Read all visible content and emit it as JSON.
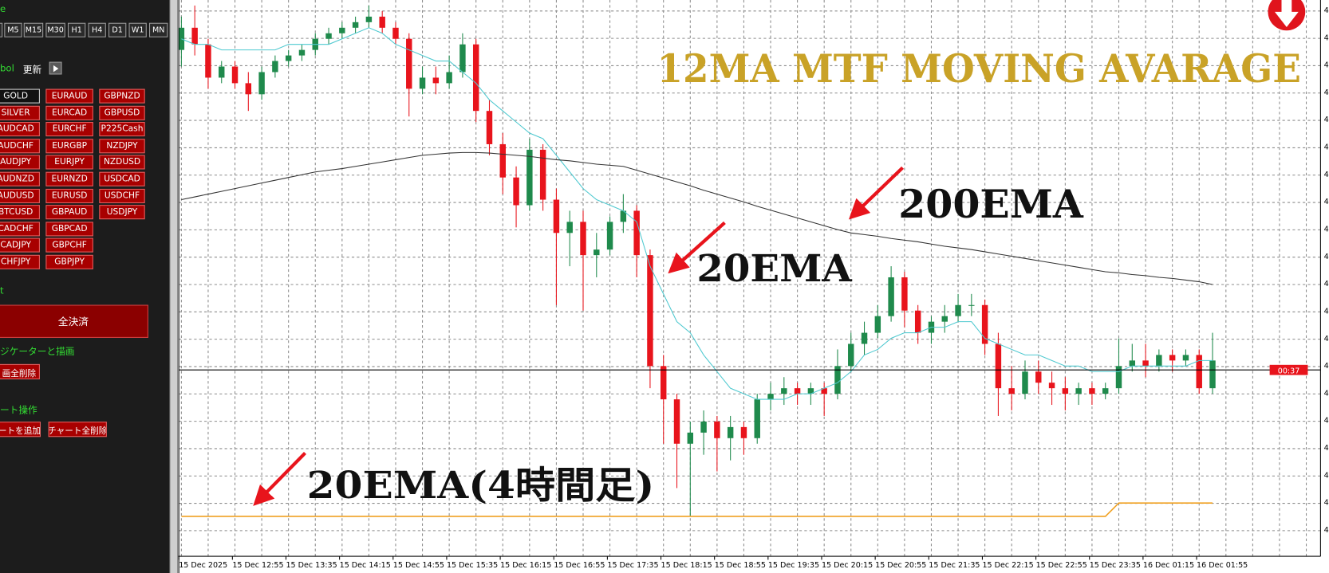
{
  "panel": {
    "timeframe_label": "e",
    "timeframes": [
      "M5",
      "M15",
      "M30",
      "H1",
      "H4",
      "D1",
      "W1",
      "MN"
    ],
    "symbol_label": "bol",
    "refresh": "更新",
    "symbol_columns": [
      [
        "GOLD",
        "SILVER",
        "AUDCAD",
        "AUDCHF",
        "AUDJPY",
        "AUDNZD",
        "AUDUSD",
        "BTCUSD",
        "CADCHF",
        "CADJPY",
        "CHFJPY"
      ],
      [
        "EURAUD",
        "EURCAD",
        "EURCHF",
        "EURGBP",
        "EURJPY",
        "EURNZD",
        "EURUSD",
        "GBPAUD",
        "GBPCAD",
        "GBPCHF",
        "GBPJPY"
      ],
      [
        "GBPNZD",
        "GBPUSD",
        "P225Cash",
        "NZDJPY",
        "NZDUSD",
        "USDCAD",
        "USDCHF",
        "USDJPY"
      ]
    ],
    "close_label": "t",
    "close_all": "全決済",
    "indicator_label": "ジケーターと描画",
    "delete_objects": "画全削除",
    "chart_label": "ート操作",
    "add_chart": "ートを追加",
    "delete_charts": "チャート全削除"
  },
  "chart_data": {
    "type": "candlestick",
    "title": "12MA MTF MOVING AVARAGE",
    "annotations": [
      "200EMA",
      "20EMA",
      "20EMA(4時間足)"
    ],
    "categories": [
      "15 Dec 2025",
      null,
      null,
      null,
      "15 Dec 12:55",
      null,
      null,
      null,
      "15 Dec 13:35",
      null,
      null,
      null,
      "15 Dec 14:15",
      null,
      null,
      null,
      "15 Dec 14:55",
      null,
      null,
      null,
      "15 Dec 15:35",
      null,
      null,
      null,
      "15 Dec 16:15",
      null,
      null,
      null,
      "15 Dec 16:55",
      null,
      null,
      null,
      "15 Dec 17:35",
      null,
      null,
      null,
      "15 Dec 18:15",
      null,
      null,
      null,
      "15 Dec 18:55",
      null,
      null,
      null,
      "15 Dec 19:35",
      null,
      null,
      null,
      "15 Dec 20:15",
      null,
      null,
      null,
      "15 Dec 20:55",
      null,
      null,
      null,
      "15 Dec 21:35",
      null,
      null,
      null,
      "15 Dec 22:15",
      null,
      null,
      null,
      "15 Dec 22:55",
      null,
      null,
      null,
      "15 Dec 23:35",
      null,
      null,
      null,
      "16 Dec 01:15",
      null,
      null,
      null,
      "16 Dec 01:55",
      null
    ],
    "candles": [
      [
        91,
        97,
        88,
        95
      ],
      [
        95,
        99,
        90,
        92
      ],
      [
        92,
        93,
        84,
        86
      ],
      [
        86,
        89,
        85,
        88
      ],
      [
        88,
        89,
        84,
        85
      ],
      [
        85,
        87,
        80,
        83
      ],
      [
        83,
        88,
        82,
        87
      ],
      [
        87,
        90,
        86,
        89
      ],
      [
        89,
        91,
        88,
        90
      ],
      [
        90,
        92,
        89,
        91
      ],
      [
        91,
        94,
        90,
        93
      ],
      [
        93,
        95,
        92,
        94
      ],
      [
        94,
        96,
        93,
        95
      ],
      [
        95,
        97,
        94,
        96
      ],
      [
        96,
        99,
        95,
        97
      ],
      [
        97,
        98,
        94,
        95
      ],
      [
        95,
        96,
        92,
        93
      ],
      [
        93,
        94,
        79,
        84
      ],
      [
        84,
        88,
        83,
        86
      ],
      [
        86,
        88,
        83,
        85
      ],
      [
        85,
        90,
        84,
        87
      ],
      [
        87,
        94,
        86,
        92
      ],
      [
        92,
        93,
        78,
        80
      ],
      [
        80,
        82,
        72,
        74
      ],
      [
        74,
        76,
        65,
        68
      ],
      [
        68,
        70,
        59,
        63
      ],
      [
        63,
        75,
        62,
        73
      ],
      [
        73,
        74,
        62,
        64
      ],
      [
        64,
        66,
        45,
        58
      ],
      [
        58,
        62,
        52,
        60
      ],
      [
        60,
        62,
        44,
        54
      ],
      [
        54,
        58,
        50,
        55
      ],
      [
        55,
        61,
        54,
        60
      ],
      [
        60,
        65,
        58,
        62
      ],
      [
        62,
        63,
        50,
        54
      ],
      [
        54,
        55,
        30,
        34
      ],
      [
        34,
        36,
        20,
        28
      ],
      [
        28,
        29,
        12,
        20
      ],
      [
        20,
        24,
        7,
        22
      ],
      [
        22,
        26,
        18,
        24
      ],
      [
        24,
        25,
        15,
        21
      ],
      [
        21,
        25,
        17,
        23
      ],
      [
        23,
        24,
        18,
        21
      ],
      [
        21,
        29,
        20,
        28
      ],
      [
        28,
        31,
        26,
        29
      ],
      [
        29,
        32,
        27,
        30
      ],
      [
        30,
        31,
        27,
        29
      ],
      [
        29,
        31,
        27,
        30
      ],
      [
        30,
        31,
        25,
        29
      ],
      [
        29,
        37,
        28,
        34
      ],
      [
        34,
        40,
        33,
        38
      ],
      [
        38,
        42,
        36,
        40
      ],
      [
        40,
        45,
        39,
        43
      ],
      [
        43,
        52,
        42,
        50
      ],
      [
        50,
        51,
        41,
        44
      ],
      [
        44,
        45,
        38,
        40
      ],
      [
        40,
        43,
        38,
        42
      ],
      [
        42,
        45,
        40,
        43
      ],
      [
        43,
        47,
        42,
        45
      ],
      [
        45,
        47,
        43,
        45
      ],
      [
        45,
        46,
        36,
        38
      ],
      [
        38,
        40,
        25,
        30
      ],
      [
        30,
        34,
        26,
        29
      ],
      [
        29,
        35,
        28,
        33
      ],
      [
        33,
        35,
        29,
        31
      ],
      [
        31,
        33,
        27,
        30
      ],
      [
        30,
        32,
        26,
        29
      ],
      [
        29,
        31,
        27,
        30
      ],
      [
        30,
        31,
        27,
        29
      ],
      [
        29,
        31,
        28,
        30
      ],
      [
        30,
        39,
        29,
        34
      ],
      [
        34,
        38,
        33,
        35
      ],
      [
        35,
        38,
        32,
        34
      ],
      [
        34,
        37,
        33,
        36
      ],
      [
        36,
        37,
        33,
        35
      ],
      [
        35,
        37,
        34,
        36
      ],
      [
        36,
        37,
        29,
        30
      ],
      [
        30,
        40,
        29,
        35
      ]
    ],
    "up_color": "#1f8a4c",
    "down_color": "#e8141c",
    "series": [
      {
        "color": "#4fc9d0",
        "values": [
          93,
          92,
          92,
          91,
          91,
          91,
          91,
          91,
          92,
          92,
          92,
          92,
          93,
          94,
          95,
          94,
          92,
          91,
          90,
          89,
          89,
          87,
          85,
          82,
          80,
          78,
          76,
          75,
          72,
          69,
          66,
          64,
          63,
          62,
          60,
          52,
          47,
          42,
          40,
          36,
          33,
          30,
          29,
          28,
          28,
          28,
          29,
          29,
          30,
          31,
          33,
          36,
          37,
          39,
          40,
          40,
          41,
          41,
          42,
          42,
          39,
          38,
          37,
          36,
          36,
          35,
          34,
          34,
          33,
          33,
          33,
          34,
          34,
          34,
          34,
          34,
          35,
          35
        ]
      },
      {
        "color": "#333333",
        "values": [
          64,
          64.5,
          65,
          65.5,
          66,
          66.5,
          67,
          67.5,
          68,
          68.5,
          69,
          69.3,
          69.6,
          70,
          70.4,
          70.8,
          71.2,
          71.6,
          72,
          72.2,
          72.4,
          72.5,
          72.5,
          72.4,
          72.2,
          72,
          71.8,
          71.5,
          71.2,
          71,
          70.7,
          70.4,
          70.2,
          70,
          69.3,
          68.6,
          67.9,
          67.2,
          66.5,
          65.7,
          65,
          64.3,
          63.6,
          62.8,
          62.1,
          61.4,
          60.7,
          60,
          59.3,
          58.6,
          58,
          57.7,
          57.4,
          57,
          56.7,
          56.4,
          56,
          55.6,
          55.3,
          55,
          54.6,
          54.2,
          53.8,
          53.4,
          53,
          52.6,
          52.2,
          51.8,
          51.4,
          51,
          50.8,
          50.5,
          50.3,
          50,
          49.8,
          49.5,
          49.2,
          48.7
        ]
      },
      {
        "color": "#f0a020",
        "values": [
          6.9,
          6.9,
          6.9,
          6.9,
          6.9,
          6.9,
          6.9,
          6.9,
          6.9,
          6.9,
          6.9,
          6.9,
          6.9,
          6.9,
          6.9,
          6.9,
          6.9,
          6.9,
          6.9,
          6.9,
          6.9,
          6.9,
          6.9,
          6.9,
          6.9,
          6.9,
          6.9,
          6.9,
          6.9,
          6.9,
          6.9,
          6.9,
          6.9,
          6.9,
          6.9,
          6.9,
          6.9,
          6.9,
          6.9,
          6.9,
          6.9,
          6.9,
          6.9,
          6.9,
          6.9,
          6.9,
          6.9,
          6.9,
          6.9,
          6.9,
          6.9,
          6.9,
          6.9,
          6.9,
          6.9,
          6.9,
          6.9,
          6.9,
          6.9,
          6.9,
          6.9,
          6.9,
          6.9,
          6.9,
          6.9,
          6.9,
          6.9,
          6.9,
          6.9,
          6.9,
          9.3,
          9.3,
          9.3,
          9.3,
          9.3,
          9.3,
          9.3,
          9.3
        ]
      }
    ],
    "ylim": [
      0,
      100
    ],
    "grid": true,
    "current_price": 33.3,
    "countdown": "00:37",
    "price_label_fragments": [
      "4",
      "4",
      "4",
      "4",
      "4",
      "4",
      "4",
      "4",
      "4",
      "4",
      "4",
      "4",
      "4",
      "4",
      "4",
      "4",
      "4",
      "4",
      "4",
      "4"
    ]
  }
}
